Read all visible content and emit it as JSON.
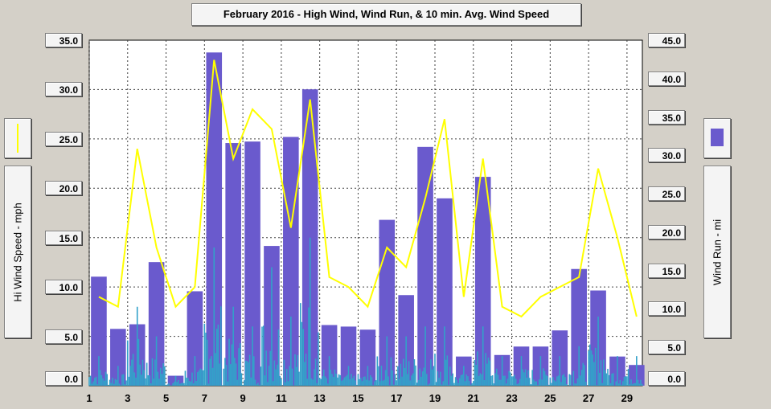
{
  "title": "February 2016 - High Wind, Wind Run, & 10 min. Avg. Wind Speed",
  "left_axis_label": "Hi Wind Speed - mph",
  "right_axis_label": "Wind Run - mi",
  "colors": {
    "background": "#d4d0c8",
    "plot_background": "#ffffff",
    "bar": "#6a5acd",
    "line": "#ffff00",
    "avg_wind": "#33a1c9",
    "grid": "#404040"
  },
  "chart_data": {
    "type": "bar",
    "grid": true,
    "x_ticks": [
      "1",
      "3",
      "5",
      "7",
      "9",
      "11",
      "13",
      "15",
      "17",
      "19",
      "21",
      "23",
      "25",
      "27",
      "29"
    ],
    "xlim": [
      1,
      29.8
    ],
    "left_axis": {
      "label": "Hi Wind Speed - mph",
      "ylim": [
        0,
        35
      ],
      "ticks": [
        "0.0",
        "5.0",
        "10.0",
        "15.0",
        "20.0",
        "25.0",
        "30.0",
        "35.0"
      ]
    },
    "right_axis": {
      "label": "Wind Run - mi",
      "ylim": [
        0,
        45
      ],
      "ticks": [
        "0.0",
        "5.0",
        "10.0",
        "15.0",
        "20.0",
        "25.0",
        "30.0",
        "35.0",
        "40.0",
        "45.0"
      ]
    },
    "wind_run_bars": {
      "axis": "right",
      "days": [
        1,
        2,
        3,
        4,
        5,
        6,
        7,
        8,
        9,
        10,
        11,
        12,
        13,
        14,
        15,
        16,
        17,
        18,
        19,
        20,
        21,
        22,
        23,
        24,
        25,
        26,
        27,
        28,
        29
      ],
      "values": [
        14.2,
        7.4,
        8.0,
        16.1,
        1.3,
        12.3,
        43.4,
        31.6,
        31.8,
        18.2,
        32.4,
        38.6,
        7.9,
        7.7,
        7.3,
        21.6,
        11.8,
        31.1,
        24.4,
        3.8,
        27.2,
        4.0,
        5.1,
        5.1,
        7.2,
        15.2,
        12.4,
        3.8,
        2.7
      ]
    },
    "hi_wind_line": {
      "axis": "left",
      "days": [
        1.5,
        2.5,
        3.5,
        4.5,
        5.5,
        6.5,
        7.5,
        8.5,
        9.5,
        10.5,
        11.5,
        12.5,
        13.5,
        14.5,
        15.5,
        16.5,
        17.5,
        18.5,
        19.5,
        20.5,
        21.5,
        22.5,
        23.5,
        24.5,
        25.5,
        26.5,
        27.5,
        28.5,
        29.5
      ],
      "values": [
        9.0,
        8.0,
        24.0,
        14.0,
        8.0,
        10.0,
        33.0,
        23.0,
        28.0,
        26.0,
        16.0,
        29.0,
        11.0,
        10.0,
        8.0,
        14.0,
        12.0,
        19.0,
        27.0,
        9.0,
        23.0,
        8.0,
        7.0,
        9.0,
        10.0,
        11.0,
        22.0,
        15.0,
        7.0
      ]
    },
    "avg_wind_series": {
      "axis": "left",
      "description_peaks_by_day": [
        3,
        2,
        8,
        5,
        1,
        3,
        14,
        8,
        6,
        12,
        7,
        15,
        3,
        2,
        2,
        5,
        5,
        6,
        6,
        2,
        6,
        3,
        3,
        3,
        3,
        4,
        7,
        3,
        3
      ]
    }
  }
}
